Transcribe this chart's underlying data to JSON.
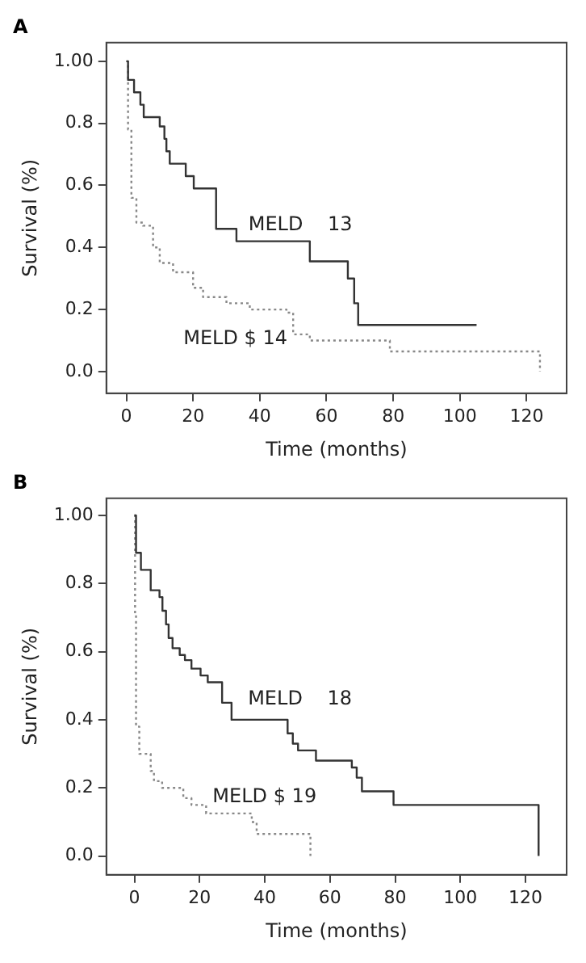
{
  "chart_data": [
    {
      "type": "step",
      "title": "A",
      "xlabel": "Time (months)",
      "ylabel": "Survival (%)",
      "xlim": [
        -6,
        132
      ],
      "xticks": [
        0,
        20,
        40,
        60,
        80,
        100,
        120
      ],
      "ylim": [
        -0.07,
        1.06
      ],
      "yticks": [
        {
          "value": 0,
          "label": "0.0"
        },
        {
          "value": 0.2,
          "label": "0.2"
        },
        {
          "value": 0.4,
          "label": "0.4"
        },
        {
          "value": 0.6,
          "label": "0.6"
        },
        {
          "value": 0.8,
          "label": "0.8"
        },
        {
          "value": 1,
          "label": "1.00"
        }
      ],
      "grid": false,
      "legend": false,
      "series": [
        {
          "name": "MELD    13",
          "color": "#333333",
          "line_style": "solid",
          "x": [
            0,
            0.5,
            2.3,
            4.2,
            5.2,
            10,
            11.4,
            12,
            13,
            17.8,
            20.2,
            26.9,
            33,
            55,
            66.4,
            68.3,
            69.5,
            105
          ],
          "values": [
            1,
            0.94,
            0.9,
            0.86,
            0.82,
            0.79,
            0.75,
            0.71,
            0.67,
            0.63,
            0.59,
            0.46,
            0.42,
            0.355,
            0.3,
            0.22,
            0.15,
            0.15
          ]
        },
        {
          "name": "MELD $ 14",
          "color": "#888888",
          "line_style": "dotted",
          "x": [
            0,
            0.5,
            1.5,
            3,
            5,
            8,
            10,
            14,
            20,
            23,
            30,
            37,
            48,
            50,
            55,
            79,
            124,
            124
          ],
          "values": [
            1,
            0.78,
            0.56,
            0.48,
            0.47,
            0.4,
            0.35,
            0.32,
            0.27,
            0.24,
            0.22,
            0.2,
            0.19,
            0.12,
            0.1,
            0.065,
            0.065,
            0
          ]
        }
      ]
    },
    {
      "type": "step",
      "title": "B",
      "xlabel": "Time (months)",
      "ylabel": "Survival (%)",
      "xlim": [
        -8.6,
        132.6
      ],
      "xticks": [
        0,
        20,
        40,
        60,
        80,
        100,
        120
      ],
      "ylim": [
        -0.055,
        1.05
      ],
      "yticks": [
        {
          "value": 0,
          "label": "0.0"
        },
        {
          "value": 0.2,
          "label": "0.2"
        },
        {
          "value": 0.4,
          "label": "0.4"
        },
        {
          "value": 0.6,
          "label": "0.6"
        },
        {
          "value": 0.8,
          "label": "0.8"
        },
        {
          "value": 1,
          "label": "1.00"
        }
      ],
      "grid": false,
      "legend": false,
      "series": [
        {
          "name": "MELD    18",
          "color": "#333333",
          "line_style": "solid",
          "x": [
            0,
            0.5,
            2,
            5,
            7.7,
            8.6,
            9.7,
            10.5,
            11.7,
            13.9,
            15.5,
            17.5,
            20.3,
            22.5,
            26.9,
            29.8,
            47,
            48.6,
            50.2,
            55.7,
            66.7,
            68.2,
            69.8,
            79.5,
            124,
            124
          ],
          "values": [
            1,
            0.89,
            0.84,
            0.78,
            0.76,
            0.72,
            0.68,
            0.64,
            0.61,
            0.59,
            0.575,
            0.55,
            0.53,
            0.51,
            0.45,
            0.4,
            0.36,
            0.33,
            0.31,
            0.28,
            0.26,
            0.23,
            0.19,
            0.15,
            0.15,
            0
          ]
        },
        {
          "name": "MELD $ 19",
          "color": "#888888",
          "line_style": "dotted",
          "x": [
            0,
            0.2,
            0.5,
            1.5,
            5,
            6,
            8.5,
            15,
            17.5,
            22,
            36,
            37.5,
            54,
            54
          ],
          "values": [
            1,
            0.71,
            0.38,
            0.3,
            0.25,
            0.22,
            0.2,
            0.17,
            0.15,
            0.125,
            0.1,
            0.065,
            0.065,
            0
          ]
        }
      ]
    }
  ]
}
